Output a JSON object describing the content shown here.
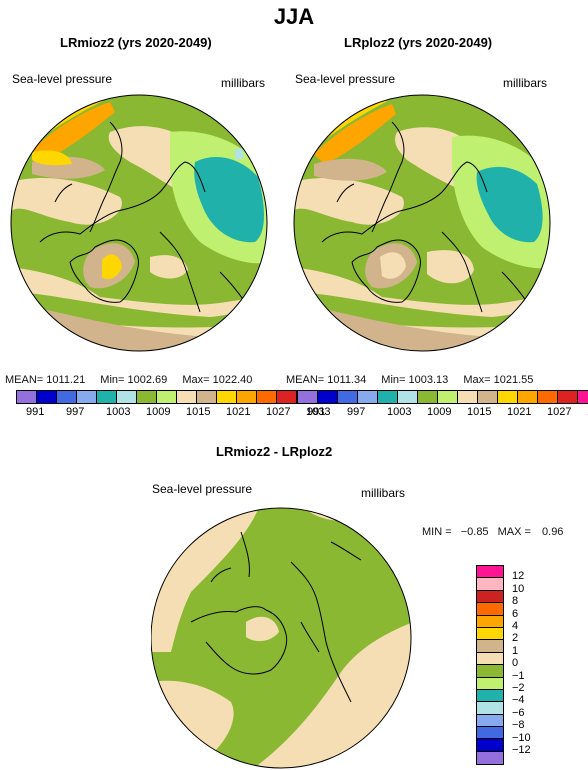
{
  "season": "JJA",
  "maps": [
    {
      "title": "LRmioz2 (yrs 2020-2049)",
      "field": "Sea-level pressure",
      "units": "millibars",
      "mean_label": "MEAN=",
      "mean": "1011.21",
      "min_label": "Min=",
      "min": "1002.69",
      "max_label": "Max=",
      "max": "1022.40"
    },
    {
      "title": "LRploz2 (yrs 2020-2049)",
      "field": "Sea-level pressure",
      "units": "millibars",
      "mean_label": "MEAN=",
      "mean": "1011.34",
      "min_label": "Min=",
      "min": "1003.13",
      "max_label": "Max=",
      "max": "1021.55"
    }
  ],
  "abs_colorbar": {
    "colors": [
      "#9370db",
      "#0000cd",
      "#4169e1",
      "#87a9ee",
      "#20b2aa",
      "#b0e2e6",
      "#8ab832",
      "#c0f070",
      "#f5deb3",
      "#d2b48c",
      "#ffd700",
      "#ffa500",
      "#ff6a00",
      "#dd2222",
      "#ff1493"
    ],
    "tick_labels": [
      "991",
      "997",
      "1003",
      "1009",
      "1015",
      "1021",
      "1027",
      "1033"
    ]
  },
  "diff": {
    "title": "LRmioz2 - LRploz2",
    "field": "Sea-level pressure",
    "units": "millibars",
    "min_label": "MIN =",
    "min": "−0.85",
    "max_label": "MAX =",
    "max": "0.96"
  },
  "diff_colorbar": {
    "colors": [
      "#ff1493",
      "#ffb6c1",
      "#cc2222",
      "#ff6a00",
      "#ffa500",
      "#ffd700",
      "#d2b48c",
      "#f5deb3",
      "#8ab832",
      "#c0f070",
      "#20b2aa",
      "#b0e2e6",
      "#87a9ee",
      "#4169e1",
      "#0000cd",
      "#9370db"
    ],
    "tick_labels": [
      "12",
      "10",
      "8",
      "6",
      "4",
      "2",
      "1",
      "0",
      "−1",
      "−2",
      "−4",
      "−6",
      "−8",
      "−10",
      "−12"
    ]
  }
}
